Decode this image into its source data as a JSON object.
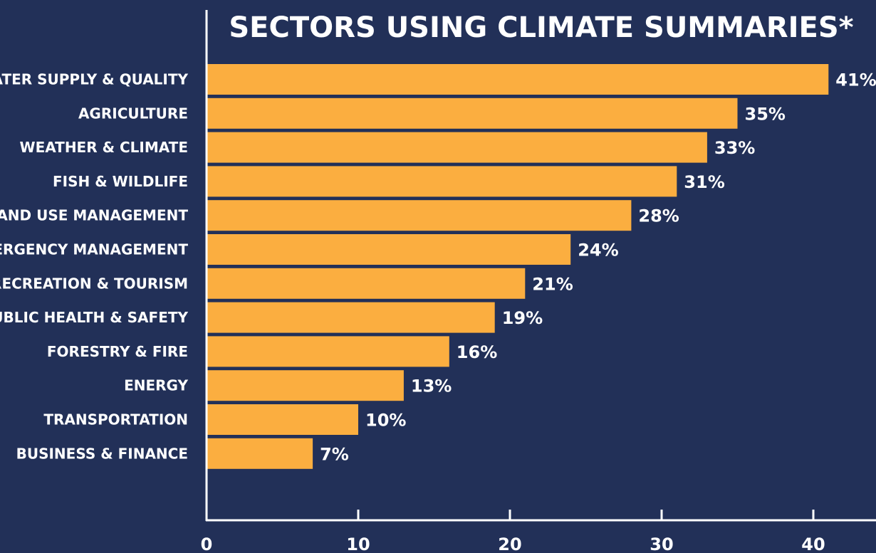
{
  "chart_data": {
    "type": "bar",
    "orientation": "horizontal",
    "title": "SECTORS USING CLIMATE SUMMARIES*",
    "categories": [
      "WATER SUPPLY & QUALITY",
      "AGRICULTURE",
      "WEATHER & CLIMATE",
      "FISH & WILDLIFE",
      "LAND USE MANAGEMENT",
      "EMERGENCY MANAGEMENT",
      "RECREATION & TOURISM",
      "PUBLIC HEALTH & SAFETY",
      "FORESTRY & FIRE",
      "ENERGY",
      "TRANSPORTATION",
      "BUSINESS & FINANCE"
    ],
    "values": [
      41,
      35,
      33,
      31,
      28,
      24,
      21,
      19,
      16,
      13,
      10,
      7
    ],
    "value_labels": [
      "41%",
      "35%",
      "33%",
      "31%",
      "28%",
      "24%",
      "21%",
      "19%",
      "16%",
      "13%",
      "10%",
      "7%"
    ],
    "xticks": [
      0,
      10,
      20,
      30,
      40
    ],
    "xticklabels": [
      "0",
      "10",
      "20",
      "30",
      "40"
    ],
    "xlim": [
      0,
      44
    ],
    "grid": false,
    "colors": {
      "background": "#223058",
      "bar": "#fbae40",
      "text": "#ffffff",
      "axis": "#ffffff"
    }
  }
}
